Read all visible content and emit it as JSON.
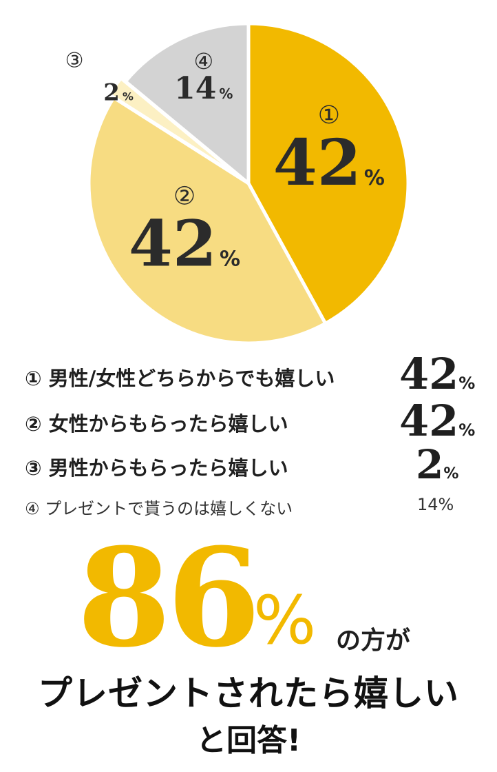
{
  "chart_data": {
    "type": "pie",
    "start_angle_deg": 0,
    "direction": "clockwise",
    "slices": [
      {
        "marker": "①",
        "value": 42,
        "pct_label": "42",
        "legend_label": "男性/女性どちらからでも嬉しい",
        "color": "#f2b900"
      },
      {
        "marker": "②",
        "value": 42,
        "pct_label": "42",
        "legend_label": "女性からもらったら嬉しい",
        "color": "#f7dc82"
      },
      {
        "marker": "③",
        "value": 2,
        "pct_label": "2",
        "legend_label": "男性からもらったら嬉しい",
        "color": "#fcf0c3"
      },
      {
        "marker": "④",
        "value": 14,
        "pct_label": "14",
        "legend_label": "プレゼントで貰うのは嬉しくない",
        "color": "#d3d3d3"
      }
    ],
    "percent_sign": "%"
  },
  "legend": {
    "rows": [
      {
        "marker": "①",
        "label": "男性/女性どちらからでも嬉しい",
        "value": "42",
        "pct": "%"
      },
      {
        "marker": "②",
        "label": "女性からもらったら嬉しい",
        "value": "42",
        "pct": "%"
      },
      {
        "marker": "③",
        "label": "男性からもらったら嬉しい",
        "value": "2",
        "pct": "%"
      },
      {
        "marker": "④",
        "label": "プレゼントで貰うのは嬉しくない",
        "value": "14%",
        "pct": ""
      }
    ]
  },
  "headline": {
    "number": "86",
    "percent": "%",
    "suffix": "の方が",
    "line2": "プレゼントされたら嬉しい",
    "line3": "と回答!"
  },
  "colors": {
    "accent": "#f2b900",
    "text": "#1f1f1f"
  }
}
